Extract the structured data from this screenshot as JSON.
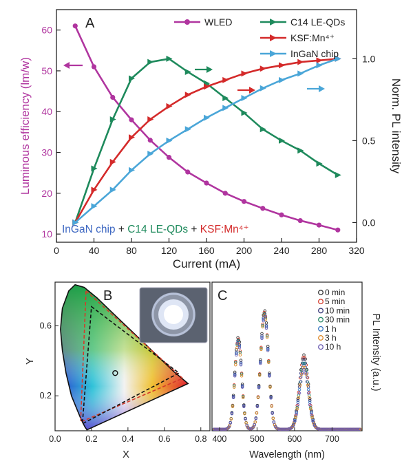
{
  "colors": {
    "wled": "#b0359f",
    "c14": "#1e8a5c",
    "ksf": "#d42a2a",
    "ingan": "#4aa6d8",
    "bottom_ingan": "#3e68c2",
    "axis": "#222222"
  },
  "chart_data": [
    {
      "panel": "A",
      "type": "line",
      "xlabel": "Current (mA)",
      "ylabel_left": "Luminous efficiency (lm/w)",
      "ylabel_right": "Norm. PL intensity",
      "xlim": [
        0,
        320
      ],
      "ylim_left": [
        8,
        65
      ],
      "ylim_right": [
        -0.12,
        1.3
      ],
      "x_ticks": [
        "0",
        "40",
        "80",
        "120",
        "160",
        "200",
        "240",
        "280",
        "320"
      ],
      "y_ticks_left": [
        "10",
        "20",
        "30",
        "40",
        "50",
        "60"
      ],
      "y_ticks_right": [
        "0.0",
        "0.5",
        "1.0"
      ],
      "legend": [
        "WLED",
        "C14 LE-QDs",
        "KSF:Mn⁴⁺",
        "InGaN chip"
      ],
      "bottom_label": {
        "part1": "InGaN chip",
        "plus1": " + ",
        "part2": "C14 LE-QDs",
        "plus2": " + ",
        "part3": "KSF:Mn⁴⁺"
      },
      "x": [
        20,
        40,
        60,
        80,
        100,
        120,
        140,
        160,
        180,
        200,
        220,
        240,
        260,
        280,
        300
      ],
      "series": [
        {
          "name": "WLED",
          "axis": "left",
          "values": [
            61,
            51,
            43.5,
            38,
            33,
            28.8,
            25.2,
            22.5,
            20,
            18,
            16.3,
            14.7,
            13.3,
            12.2,
            11
          ]
        },
        {
          "name": "C14 LE-QDs",
          "axis": "right",
          "values": [
            0.0,
            0.33,
            0.63,
            0.88,
            0.98,
            1.0,
            0.92,
            0.85,
            0.76,
            0.67,
            0.57,
            0.5,
            0.44,
            0.36,
            0.29
          ]
        },
        {
          "name": "KSF:Mn⁴⁺",
          "axis": "right",
          "values": [
            0.0,
            0.2,
            0.37,
            0.52,
            0.63,
            0.71,
            0.78,
            0.83,
            0.87,
            0.91,
            0.94,
            0.96,
            0.98,
            0.99,
            1.0
          ]
        },
        {
          "name": "InGaN chip",
          "axis": "right",
          "values": [
            0.0,
            0.1,
            0.2,
            0.32,
            0.42,
            0.5,
            0.57,
            0.64,
            0.7,
            0.76,
            0.82,
            0.87,
            0.91,
            0.96,
            1.0
          ]
        }
      ]
    },
    {
      "panel": "B",
      "type": "scatter",
      "xlabel": "X",
      "ylabel": "Y",
      "xlim": [
        0,
        0.85
      ],
      "ylim": [
        0,
        0.85
      ],
      "x_ticks": [
        "0.0",
        "0.2",
        "0.4",
        "0.6",
        "0.8"
      ],
      "y_ticks": [
        "0.2",
        "0.6"
      ],
      "white_point": [
        0.33,
        0.33
      ],
      "triangle_measured": [
        [
          0.2,
          0.71
        ],
        [
          0.68,
          0.33
        ],
        [
          0.15,
          0.04
        ]
      ],
      "triangle_reference": [
        [
          0.17,
          0.8
        ],
        [
          0.7,
          0.3
        ],
        [
          0.14,
          0.05
        ]
      ]
    },
    {
      "panel": "C",
      "type": "line",
      "xlabel": "Wavelength (nm)",
      "ylabel": "PL Intensity (a.u.)",
      "xlim": [
        380,
        780
      ],
      "x_ticks": [
        "400",
        "500",
        "600",
        "700"
      ],
      "peaks_nm": [
        450,
        520,
        625
      ],
      "series": [
        {
          "name": "0 min",
          "color": "#333333",
          "peak_heights": [
            0.62,
            0.8,
            0.5
          ]
        },
        {
          "name": "5 min",
          "color": "#d43a2a",
          "peak_heights": [
            0.61,
            0.79,
            0.49
          ]
        },
        {
          "name": "10 min",
          "color": "#3a3a7a",
          "peak_heights": [
            0.6,
            0.78,
            0.47
          ]
        },
        {
          "name": "30 min",
          "color": "#2a8a6a",
          "peak_heights": [
            0.6,
            0.78,
            0.45
          ]
        },
        {
          "name": "1 h",
          "color": "#3a78c2",
          "peak_heights": [
            0.59,
            0.77,
            0.44
          ]
        },
        {
          "name": "3 h",
          "color": "#e08a2a",
          "peak_heights": [
            0.58,
            0.77,
            0.42
          ]
        },
        {
          "name": "10 h",
          "color": "#6a5ab0",
          "peak_heights": [
            0.58,
            0.76,
            0.4
          ]
        }
      ]
    }
  ],
  "labels": {
    "panel_a": "A",
    "panel_b": "B",
    "panel_c": "C"
  }
}
